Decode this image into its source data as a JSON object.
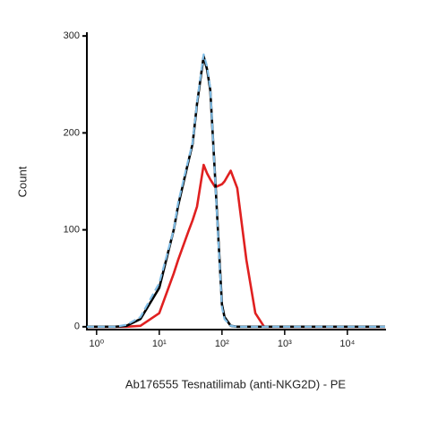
{
  "chart_data": {
    "type": "line",
    "xlabel": "Ab176555 Tesnatilimab (anti-NKG2D) - PE",
    "ylabel": "Count",
    "xscale": "log",
    "x": [
      0.7,
      2,
      3,
      5,
      10,
      17,
      20,
      29,
      34,
      40,
      51,
      58,
      65,
      78,
      100,
      110,
      138,
      175,
      245,
      340,
      470,
      1000,
      40000
    ],
    "series": [
      {
        "color": "#e02020",
        "style": "solid",
        "values": [
          0,
          0,
          0,
          1,
          14,
          55,
          69,
          98,
          110,
          124,
          167,
          158,
          152,
          144,
          147,
          150,
          161,
          143,
          69,
          14,
          0,
          0,
          0
        ]
      },
      {
        "color": "#000000",
        "style": "solid",
        "values": [
          0,
          0,
          1,
          8,
          40,
          100,
          125,
          170,
          189,
          230,
          279,
          265,
          244,
          152,
          23,
          10,
          1,
          0,
          0,
          0,
          0,
          0,
          0
        ]
      },
      {
        "color": "#80bde6",
        "style": "dashed",
        "values": [
          0,
          0,
          2,
          10,
          45,
          100,
          128,
          172,
          190,
          232,
          281,
          268,
          246,
          150,
          20,
          8,
          1,
          0,
          0,
          0,
          0,
          0,
          0
        ]
      }
    ],
    "xlim": [
      0.7,
      40000
    ],
    "ylim": [
      -2,
      302
    ],
    "xticks": [
      {
        "value": 1,
        "label": "10⁰"
      },
      {
        "value": 10,
        "label": "10¹"
      },
      {
        "value": 100,
        "label": "10²"
      },
      {
        "value": 1000,
        "label": "10³"
      },
      {
        "value": 10000,
        "label": "10⁴"
      }
    ],
    "yticks": [
      0,
      100,
      200,
      300
    ]
  }
}
